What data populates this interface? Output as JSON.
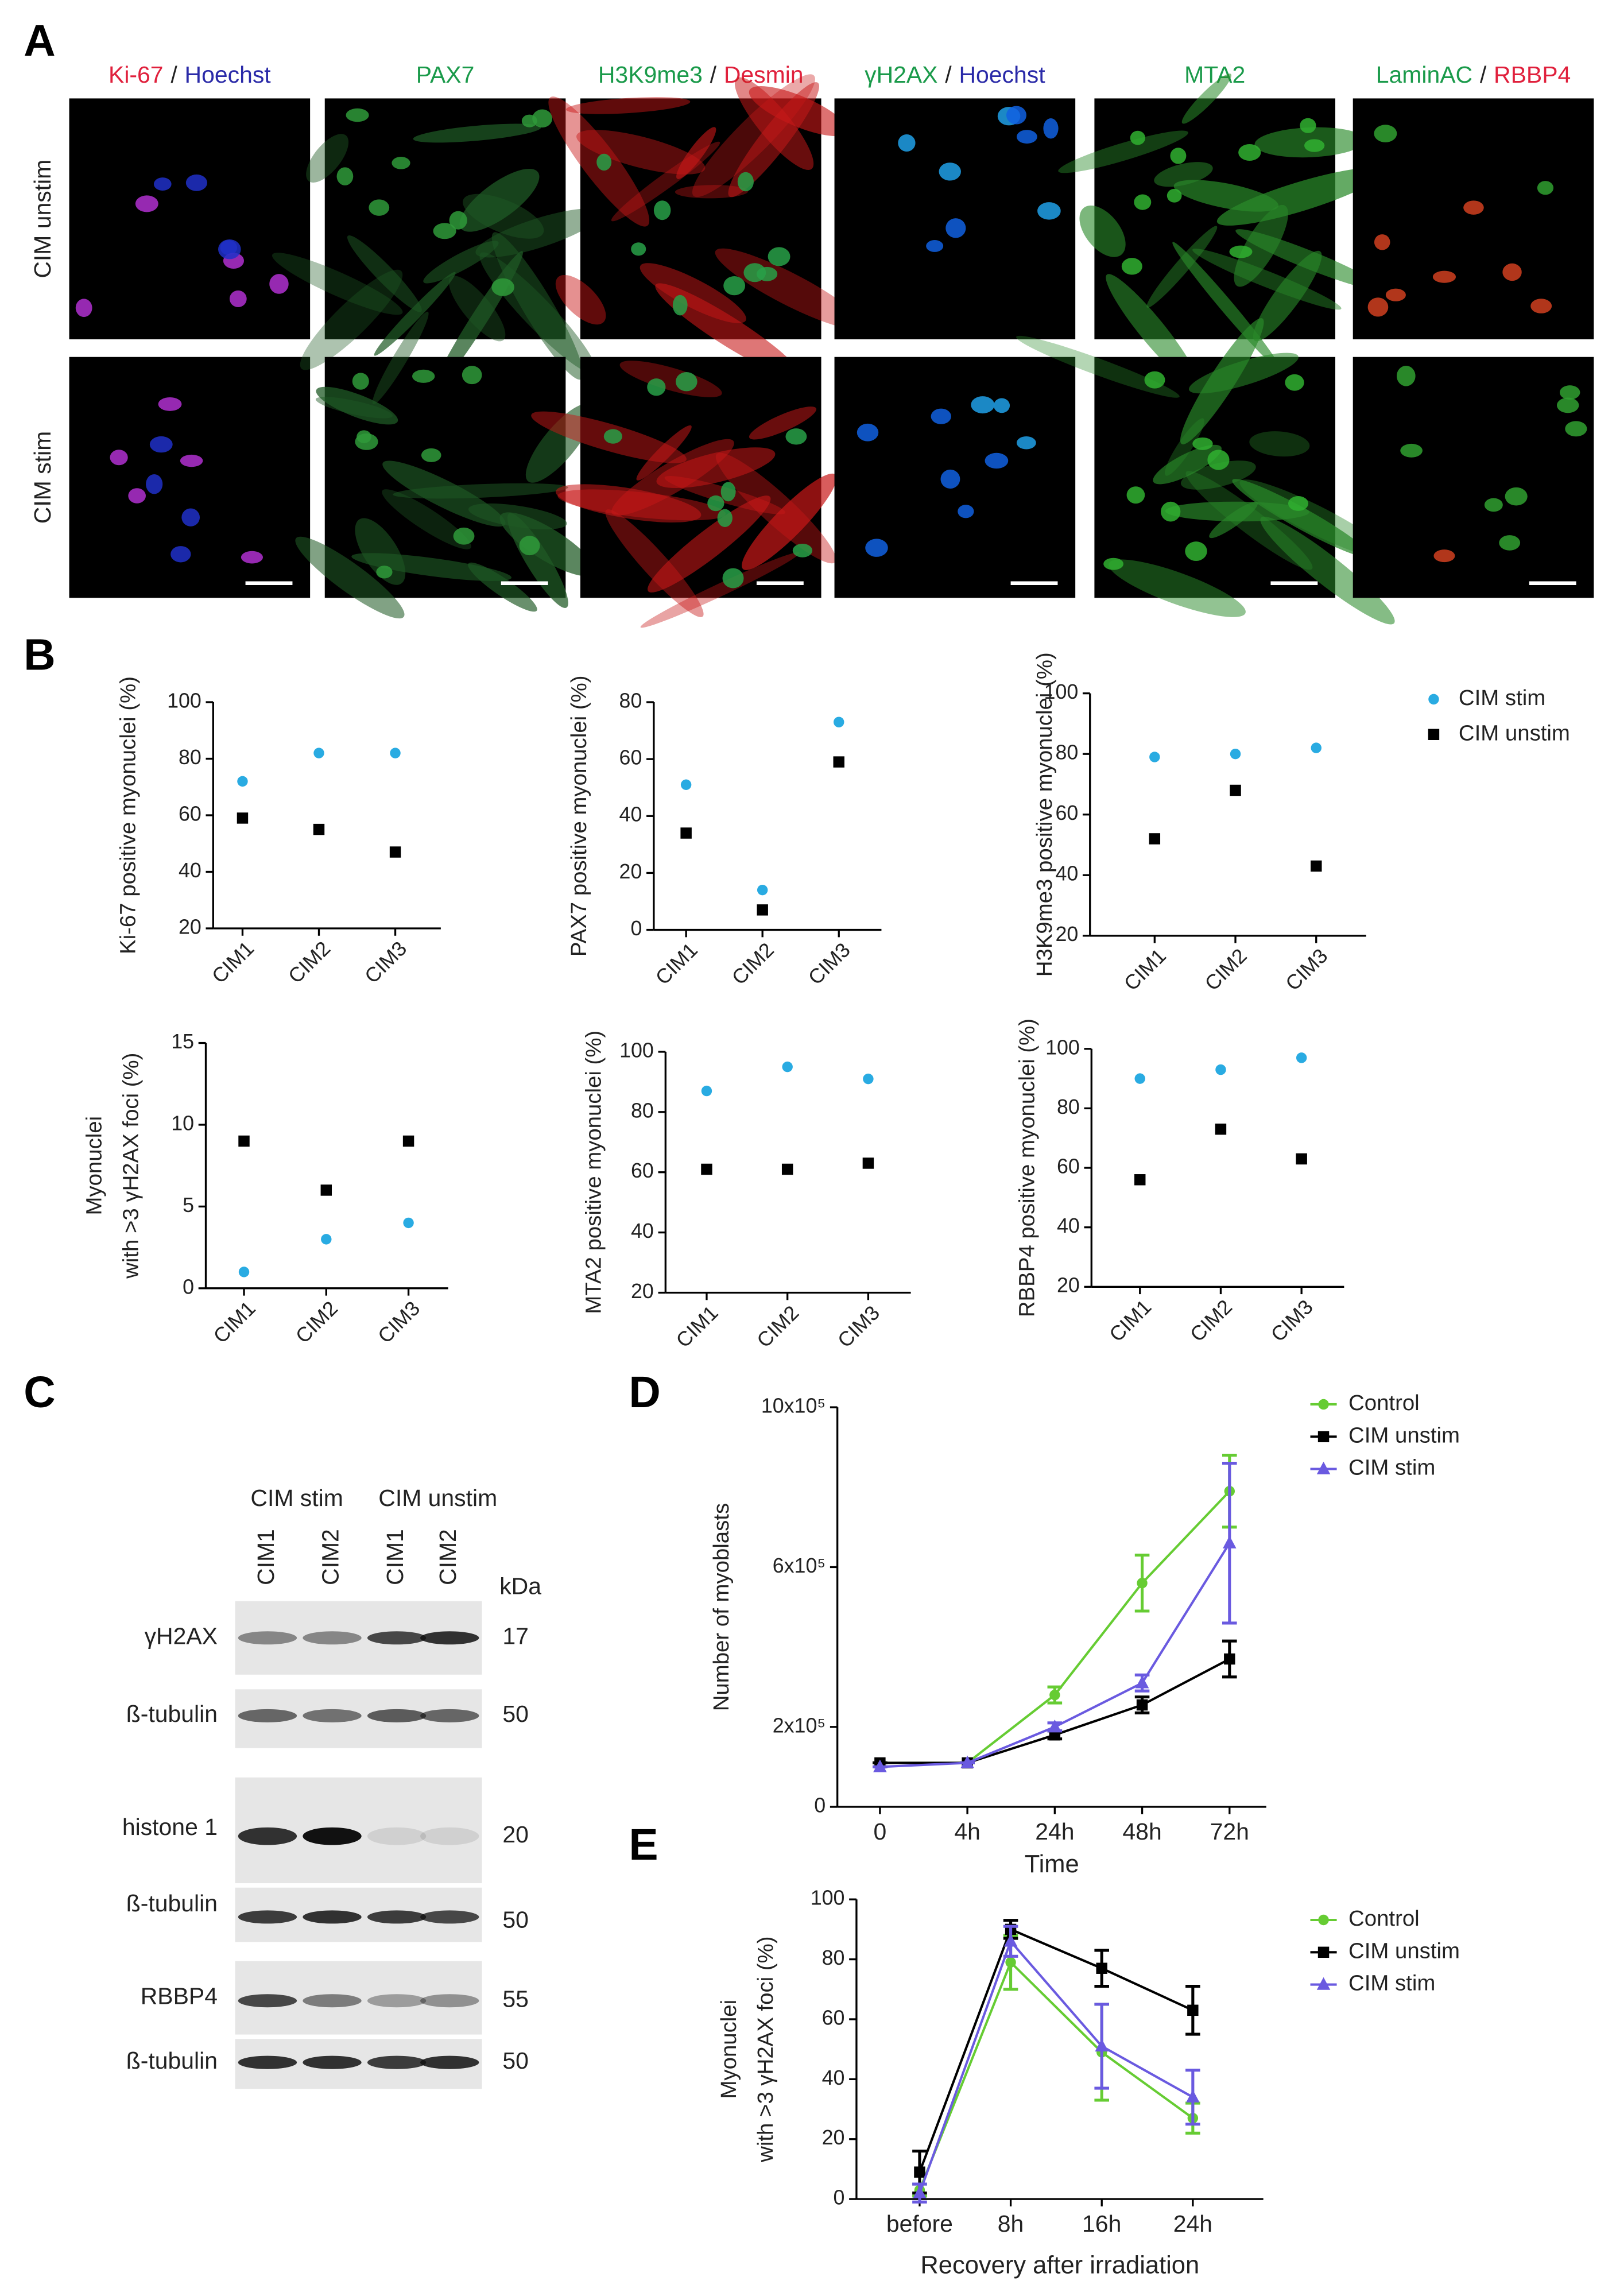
{
  "panel_labels": [
    "A",
    "B",
    "C",
    "D",
    "E"
  ],
  "microscopy": {
    "columns": [
      {
        "parts": [
          {
            "text": "Ki-67",
            "color": "#e0203c"
          },
          {
            "text": "/",
            "color": "#222222"
          },
          {
            "text": "Hoechst",
            "color": "#2a2aa8"
          }
        ]
      },
      {
        "parts": [
          {
            "text": "PAX7",
            "color": "#1a9a4a"
          }
        ]
      },
      {
        "parts": [
          {
            "text": "H3K9me3",
            "color": "#1a9a4a"
          },
          {
            "text": "/",
            "color": "#222222"
          },
          {
            "text": "Desmin",
            "color": "#e0203c"
          }
        ]
      },
      {
        "parts": [
          {
            "text": "γH2AX",
            "color": "#1a9a4a"
          },
          {
            "text": "/",
            "color": "#222222"
          },
          {
            "text": "Hoechst",
            "color": "#2a2aa8"
          }
        ]
      },
      {
        "parts": [
          {
            "text": "MTA2",
            "color": "#1a9a4a"
          }
        ]
      },
      {
        "parts": [
          {
            "text": "LaminAC",
            "color": "#1a9a4a"
          },
          {
            "text": "/",
            "color": "#222222"
          },
          {
            "text": "RBBP4",
            "color": "#e0203c"
          }
        ]
      }
    ],
    "rows": [
      "CIM unstim",
      "CIM stim"
    ]
  },
  "blot": {
    "groups": [
      "CIM stim",
      "CIM unstim"
    ],
    "lanes": [
      "CIM1",
      "CIM2",
      "CIM1",
      "CIM2"
    ],
    "unit": "kDa",
    "rows": [
      {
        "label": "γH2AX",
        "size": 17
      },
      {
        "label": "ß-tubulin",
        "size": 50
      },
      {
        "label": "histone 1",
        "size": 20
      },
      {
        "label": "ß-tubulin",
        "size": 50
      },
      {
        "label": "RBBP4",
        "size": 55
      },
      {
        "label": "ß-tubulin",
        "size": 50
      }
    ]
  },
  "chart_data": [
    {
      "type": "dot",
      "ylabel": "Ki-67 positive myonuclei (%)",
      "categories": [
        "CIM1",
        "CIM2",
        "CIM3"
      ],
      "ylim": [
        20,
        100
      ],
      "yticks": [
        20,
        40,
        60,
        80,
        100
      ],
      "series": [
        {
          "color": "#29abe2",
          "marker": "circle",
          "values": [
            72,
            82,
            82
          ]
        },
        {
          "color": "#000000",
          "marker": "square",
          "values": [
            59,
            55,
            47
          ]
        }
      ]
    },
    {
      "type": "dot",
      "ylabel": "PAX7 positive myonuclei (%)",
      "categories": [
        "CIM1",
        "CIM2",
        "CIM3"
      ],
      "ylim": [
        0,
        80
      ],
      "yticks": [
        0,
        20,
        40,
        60,
        80
      ],
      "series": [
        {
          "color": "#29abe2",
          "marker": "circle",
          "values": [
            51,
            14,
            73
          ]
        },
        {
          "color": "#000000",
          "marker": "square",
          "values": [
            34,
            7,
            59
          ]
        }
      ]
    },
    {
      "type": "dot",
      "ylabel": "H3K9me3 positive myonuclei (%)",
      "categories": [
        "CIM1",
        "CIM2",
        "CIM3"
      ],
      "ylim": [
        20,
        100
      ],
      "yticks": [
        20,
        40,
        60,
        80,
        100
      ],
      "legend": "right",
      "series": [
        {
          "name": "CIM stim",
          "color": "#29abe2",
          "marker": "circle",
          "values": [
            79,
            80,
            82
          ]
        },
        {
          "name": "CIM unstim",
          "color": "#000000",
          "marker": "square",
          "values": [
            52,
            68,
            43
          ]
        }
      ]
    },
    {
      "type": "dot",
      "ylabel": [
        "Myonuclei",
        "with >3 γH2AX foci (%)"
      ],
      "categories": [
        "CIM1",
        "CIM2",
        "CIM3"
      ],
      "ylim": [
        0,
        15
      ],
      "yticks": [
        0,
        5,
        10,
        15
      ],
      "series": [
        {
          "color": "#29abe2",
          "marker": "circle",
          "values": [
            1,
            3,
            4
          ]
        },
        {
          "color": "#000000",
          "marker": "square",
          "values": [
            9,
            6,
            9
          ]
        }
      ]
    },
    {
      "type": "dot",
      "ylabel": "MTA2 positive myonuclei (%)",
      "categories": [
        "CIM1",
        "CIM2",
        "CIM3"
      ],
      "ylim": [
        20,
        100
      ],
      "yticks": [
        20,
        40,
        60,
        80,
        100
      ],
      "series": [
        {
          "color": "#29abe2",
          "marker": "circle",
          "values": [
            87,
            95,
            91
          ]
        },
        {
          "color": "#000000",
          "marker": "square",
          "values": [
            61,
            61,
            63
          ]
        }
      ]
    },
    {
      "type": "dot",
      "ylabel": "RBBP4 positive myonuclei (%)",
      "categories": [
        "CIM1",
        "CIM2",
        "CIM3"
      ],
      "ylim": [
        20,
        100
      ],
      "yticks": [
        20,
        40,
        60,
        80,
        100
      ],
      "series": [
        {
          "color": "#29abe2",
          "marker": "circle",
          "values": [
            90,
            93,
            97
          ]
        },
        {
          "color": "#000000",
          "marker": "square",
          "values": [
            56,
            73,
            63
          ]
        }
      ]
    },
    {
      "type": "line",
      "xlabel": "Time",
      "ylabel": "Number of myoblasts",
      "categories": [
        "0",
        "4h",
        "24h",
        "48h",
        "72h"
      ],
      "ylim": [
        0,
        1000000
      ],
      "yticks": [
        0,
        {
          "value": 200000,
          "label": "2x10⁵"
        },
        {
          "value": 600000,
          "label": "6x10⁵"
        },
        {
          "value": 1000000,
          "label": "10x10⁵"
        }
      ],
      "legend": "upper right",
      "series": [
        {
          "name": "Control",
          "color": "#66cc33",
          "marker": "circle",
          "values": [
            110000,
            110000,
            280000,
            560000,
            790000
          ],
          "errors": [
            0,
            0,
            20000,
            70000,
            90000
          ]
        },
        {
          "name": "CIM unstim",
          "color": "#000000",
          "marker": "square",
          "values": [
            110000,
            110000,
            180000,
            255000,
            370000
          ],
          "errors": [
            0,
            0,
            10000,
            20000,
            45000
          ]
        },
        {
          "name": "CIM stim",
          "color": "#6a5ae0",
          "marker": "triangle",
          "values": [
            100000,
            110000,
            200000,
            310000,
            660000
          ],
          "errors": [
            0,
            0,
            10000,
            20000,
            200000
          ]
        }
      ]
    },
    {
      "type": "line",
      "xlabel": "Recovery after irradiation",
      "ylabel": [
        "Myonuclei",
        "with >3 γH2AX foci (%)"
      ],
      "categories": [
        "before",
        "8h",
        "16h",
        "24h"
      ],
      "ylim": [
        0,
        100
      ],
      "yticks": [
        0,
        20,
        40,
        60,
        80,
        100
      ],
      "legend": "upper right",
      "series": [
        {
          "name": "Control",
          "color": "#66cc33",
          "marker": "circle",
          "values": [
            3,
            79,
            49,
            27
          ],
          "errors": [
            2,
            9,
            16,
            5
          ]
        },
        {
          "name": "CIM unstim",
          "color": "#000000",
          "marker": "square",
          "values": [
            9,
            90,
            77,
            63
          ],
          "errors": [
            7,
            3,
            6,
            8
          ]
        },
        {
          "name": "CIM stim",
          "color": "#6a5ae0",
          "marker": "triangle",
          "values": [
            2,
            86,
            51,
            34
          ],
          "errors": [
            3,
            5,
            14,
            9
          ]
        }
      ]
    }
  ]
}
